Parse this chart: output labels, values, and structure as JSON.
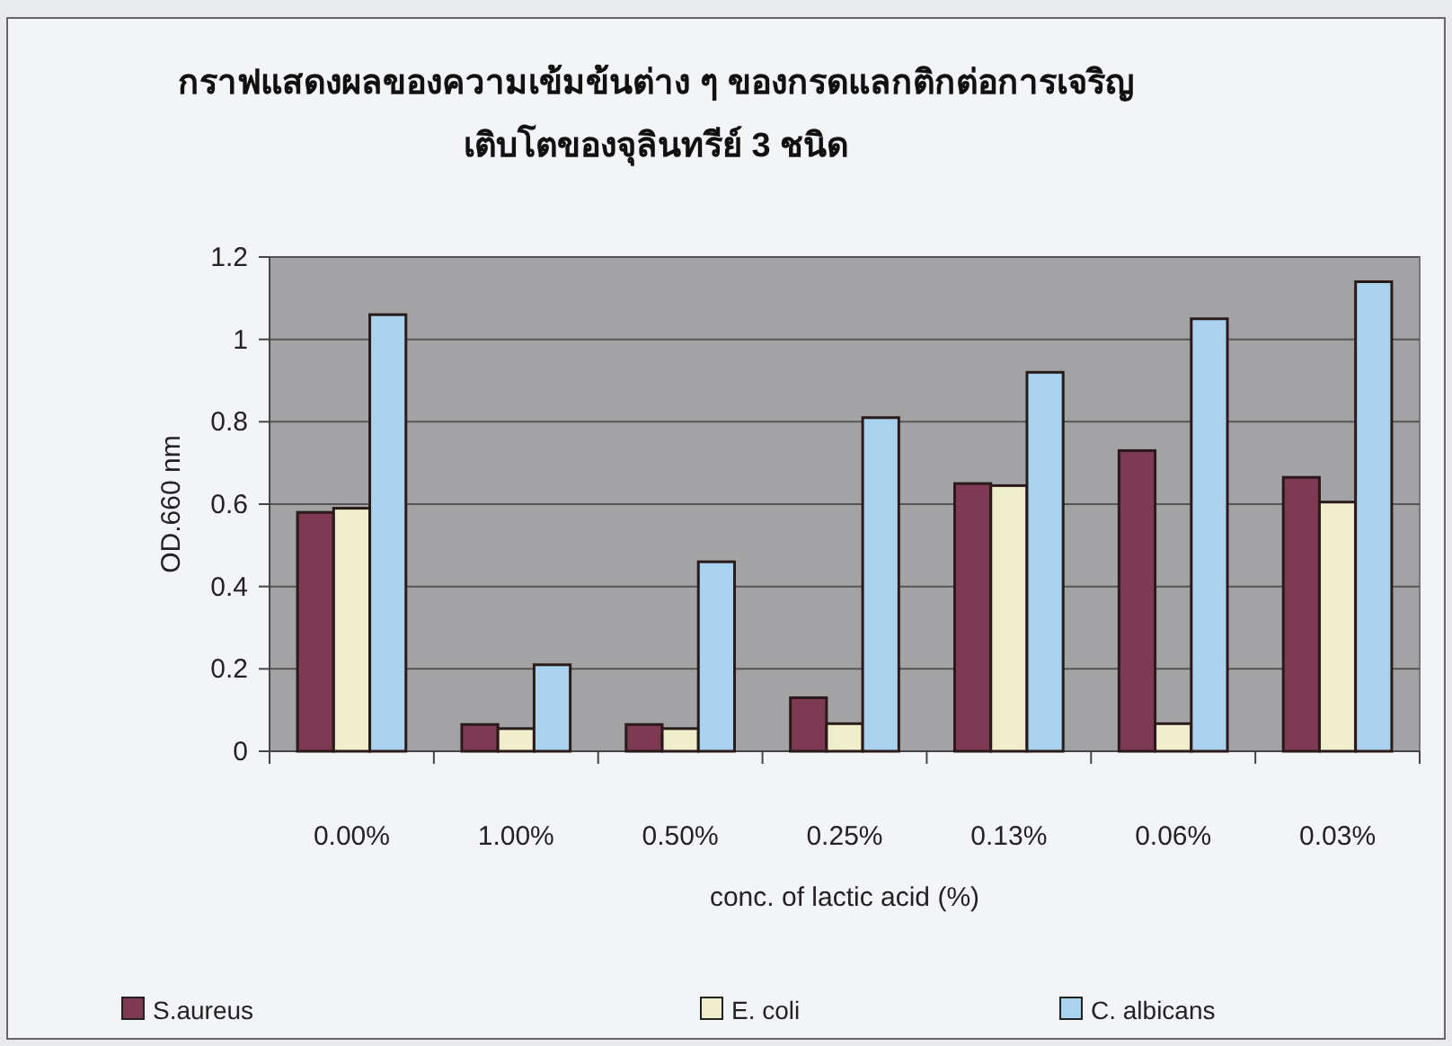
{
  "chart_data": {
    "type": "bar",
    "title": "กราฟแสดงผลของความเข้มข้นต่าง ๆ ของกรดแลกติกต่อการเจริญ\nเติบโตของจุลินทรีย์ 3 ชนิด",
    "xlabel": "conc. of lactic acid (%)",
    "ylabel": "OD.660 nm",
    "categories": [
      "0.00%",
      "1.00%",
      "0.50%",
      "0.25%",
      "0.13%",
      "0.06%",
      "0.03%"
    ],
    "series": [
      {
        "name": "S.aureus",
        "color": "#7e3a52",
        "values": [
          0.58,
          0.065,
          0.065,
          0.13,
          0.65,
          0.73,
          0.665
        ]
      },
      {
        "name": "E. coli",
        "color": "#eeeecc",
        "values": [
          0.59,
          0.055,
          0.055,
          0.067,
          0.645,
          0.067,
          0.605
        ]
      },
      {
        "name": "C. albicans",
        "color": "#a8d2ee",
        "values": [
          1.06,
          0.21,
          0.46,
          0.81,
          0.92,
          1.05,
          1.14
        ]
      }
    ],
    "ylim": [
      0,
      1.2
    ],
    "yticks": [
      0,
      0.2,
      0.4,
      0.6,
      0.8,
      1,
      1.2
    ],
    "grid": "y",
    "legend": "bottom"
  }
}
